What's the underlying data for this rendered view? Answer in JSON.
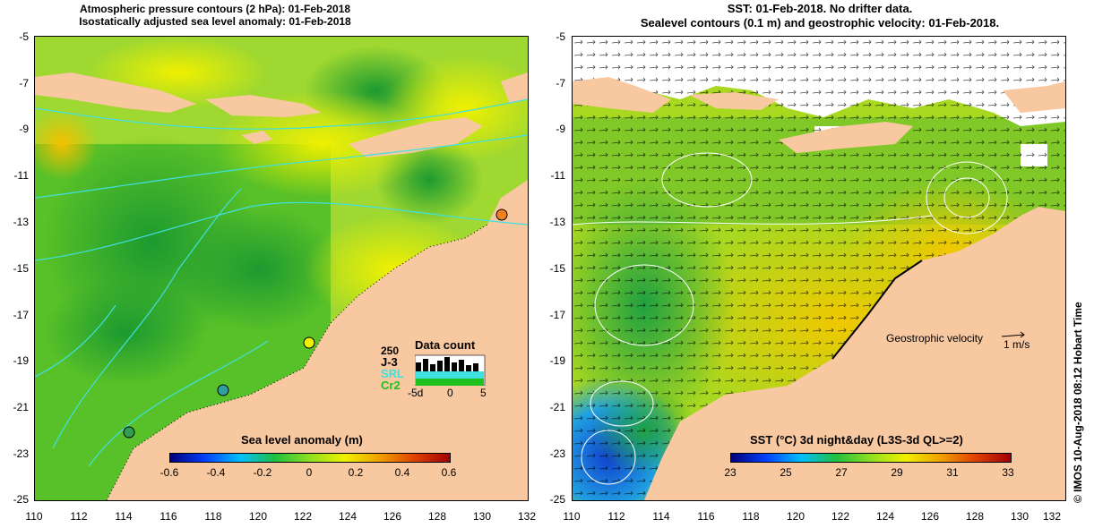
{
  "left_panel": {
    "title_line1": "Atmospheric pressure contours (2 hPa): 01-Feb-2018",
    "title_line2": "Isostatically adjusted sea level anomaly: 01-Feb-2018",
    "colorbar": {
      "title": "Sea level anomaly (m)",
      "ticks": [
        "-0.6",
        "-0.4",
        "-0.2",
        "0",
        "0.2",
        "0.4",
        "0.6"
      ]
    },
    "data_count": {
      "title": "Data count",
      "max_label": "250",
      "series": [
        "J-3",
        "SRL",
        "Cr2"
      ],
      "series_colors": [
        "#000000",
        "#40e0e0",
        "#20c020"
      ],
      "x_ticks": [
        "-5d",
        "0",
        "5"
      ]
    }
  },
  "right_panel": {
    "title_line1": "SST: 01-Feb-2018. No drifter data.",
    "title_line2": "Sealevel contours (0.1 m) and geostrophic velocity: 01-Feb-2018.",
    "velocity_label": "Geostrophic velocity",
    "velocity_scale": "1 m/s",
    "colorbar": {
      "title": "SST (°C) 3d night&day (L3S-3d QL>=2)",
      "ticks": [
        "23",
        "25",
        "27",
        "29",
        "31",
        "33"
      ]
    }
  },
  "axes": {
    "y_ticks": [
      "-5",
      "-7",
      "-9",
      "-11",
      "-13",
      "-15",
      "-17",
      "-19",
      "-21",
      "-23",
      "-25"
    ],
    "x_ticks": [
      "110",
      "112",
      "114",
      "116",
      "118",
      "120",
      "122",
      "124",
      "126",
      "128",
      "130",
      "132"
    ]
  },
  "side_label": "© IMOS 10-Aug-2018 08:12 Hobart Time",
  "colors": {
    "land": "#f8c8a0",
    "sst_warm": "#f0d000",
    "sst_mid": "#60c020",
    "sla_high": "#e8f000",
    "sla_low": "#30b020",
    "contour": "#40e0e0"
  }
}
